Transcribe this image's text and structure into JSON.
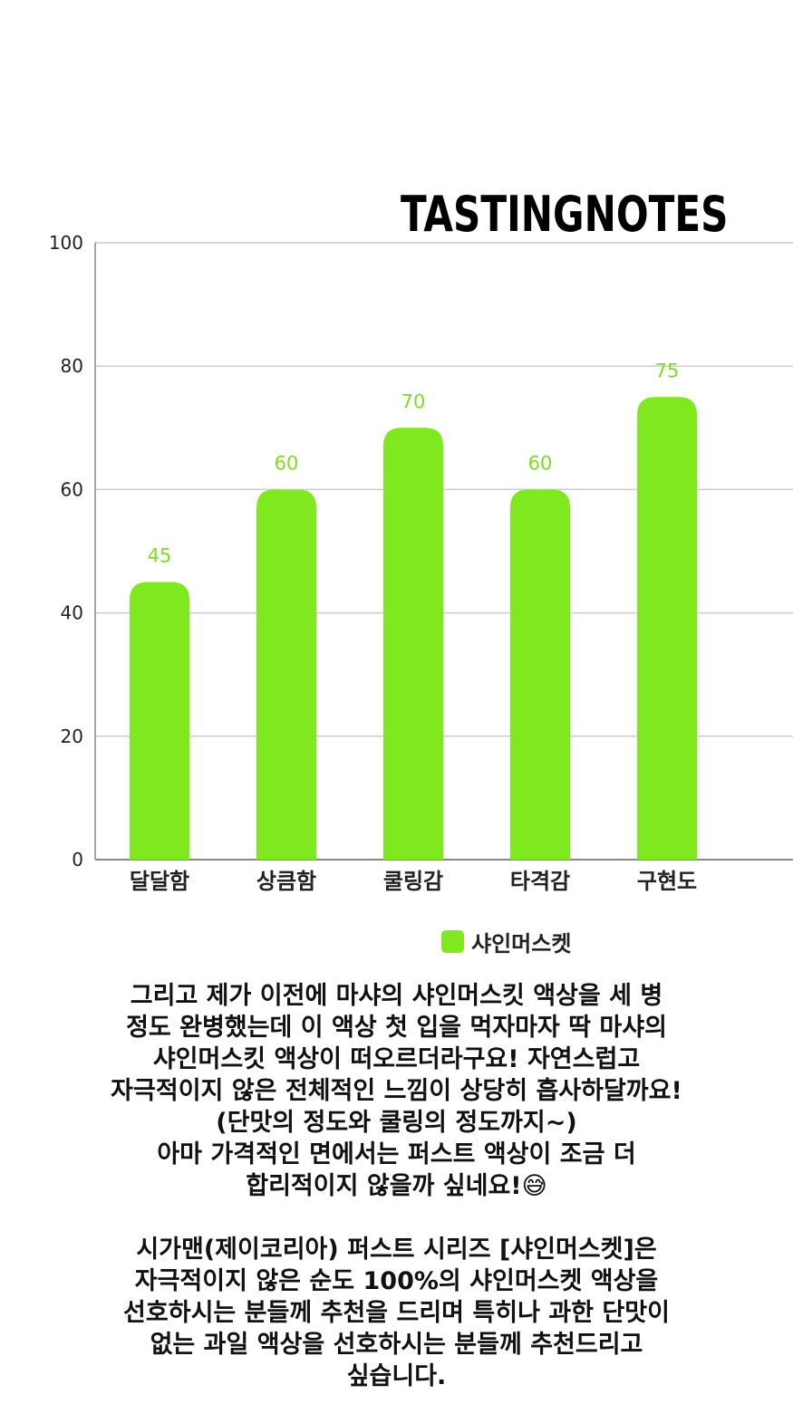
{
  "chart_data": {
    "type": "bar",
    "title": "TASTINGNOTES",
    "categories": [
      "달달함",
      "상큼함",
      "쿨링감",
      "타격감",
      "구현도"
    ],
    "series": [
      {
        "name": "샤인머스켓",
        "values": [
          45,
          60,
          70,
          60,
          75
        ]
      }
    ],
    "data_labels": [
      "45",
      "60",
      "70",
      "60",
      "75"
    ],
    "ylim": [
      0,
      100
    ],
    "yticks": [
      0,
      20,
      40,
      60,
      80,
      100
    ],
    "ytick_labels": [
      "0",
      "20",
      "40",
      "60",
      "80",
      "100"
    ],
    "xlabel": "",
    "ylabel": "",
    "grid": true,
    "legend_position": "bottom",
    "colors": {
      "bar": "#80e81e",
      "data_label": "#7fdc22",
      "grid": "#cccccc",
      "axis": "#888888",
      "tick_label": "#222222"
    }
  },
  "description": {
    "lines": [
      "그리고 제가 이전에 마샤의 샤인머스킷 액상을 세 병",
      "정도 완병했는데 이 액상 첫 입을 먹자마자 딱 마샤의",
      "샤인머스킷 액상이 떠오르더라구요! 자연스럽고",
      "자극적이지 않은 전체적인 느낌이 상당히 흡사하달까요!",
      "(단맛의 정도와 쿨링의 정도까지~)",
      "아마 가격적인 면에서는 퍼스트 액상이 조금 더",
      "합리적이지 않을까 싶네요!😅",
      "시가맨(제이코리아) 퍼스트 시리즈 [샤인머스켓]은",
      "자극적이지 않은 순도 100%의 샤인머스켓 액상을",
      "선호하시는 분들께 추천을 드리며 특히나 과한 단맛이",
      "없는 과일 액상을 선호하시는 분들께 추천드리고",
      "싶습니다."
    ]
  }
}
